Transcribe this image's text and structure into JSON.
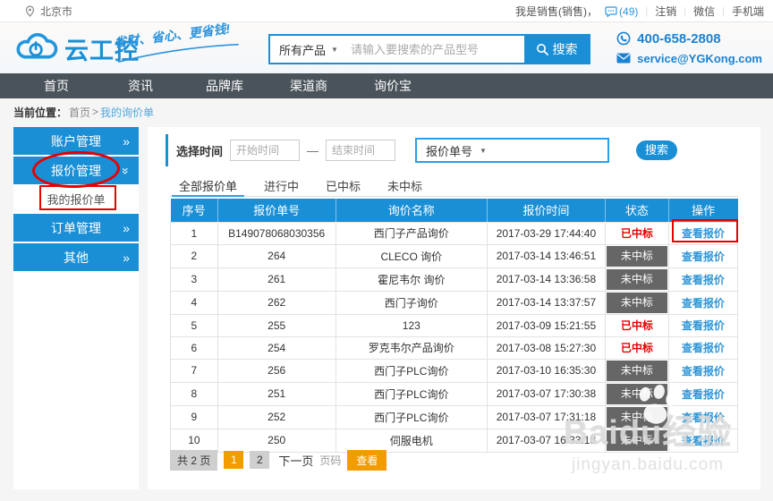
{
  "colors": {
    "primary": "#1b8fd6",
    "nav_bg": "#4a535b",
    "red": "#e60000",
    "chip_bg": "#666666",
    "link": "#2f96d8",
    "orange": "#f39c00",
    "page_bg": "#f5f5f5"
  },
  "topbar": {
    "city": "北京市",
    "user_label": "我是销售(销售)，",
    "message_count": "(49)",
    "links": [
      "注销",
      "微信",
      "手机端"
    ]
  },
  "header": {
    "logo_text": "云工控",
    "slogan": "省财、省心、更省钱!",
    "search_category": "所有产品",
    "search_placeholder": "请输入要搜索的产品型号",
    "search_button": "搜索",
    "phone": "400-658-2808",
    "email": "service@YGKong.com"
  },
  "nav_items": [
    "首页",
    "资讯",
    "品牌库",
    "渠道商",
    "询价宝"
  ],
  "breadcrumb": {
    "prefix": "当前位置：",
    "home": "首页",
    "separator": ">",
    "current": "我的询价单"
  },
  "sidebar_items": [
    {
      "label": "账户管理",
      "type": "main",
      "chevron": "right"
    },
    {
      "label": "报价管理",
      "type": "main",
      "chevron": "down"
    },
    {
      "label": "我的报价单",
      "type": "sub"
    },
    {
      "label": "订单管理",
      "type": "main",
      "chevron": "right"
    },
    {
      "label": "其他",
      "type": "main",
      "chevron": "right"
    }
  ],
  "filters": {
    "time_label": "选择时间",
    "start_placeholder": "开始时间",
    "dash": "—",
    "end_placeholder": "结束时间",
    "type_select": "报价单号",
    "search_button": "搜索"
  },
  "tabs": {
    "items": [
      "全部报价单",
      "进行中",
      "已中标",
      "未中标"
    ],
    "active_index": 0
  },
  "table": {
    "headers": [
      "序号",
      "报价单号",
      "询价名称",
      "报价时间",
      "状态",
      "操作"
    ],
    "rows": [
      {
        "no": "1",
        "quote_no": "B149078068030356",
        "inquiry_name": "西门子产品询价",
        "quote_time": "2017-03-29 17:44:40",
        "status": "已中标",
        "won": true,
        "action": "查看报价"
      },
      {
        "no": "2",
        "quote_no": "264",
        "inquiry_name": "CLECO 询价",
        "quote_time": "2017-03-14 13:46:51",
        "status": "未中标",
        "won": false,
        "action": "查看报价"
      },
      {
        "no": "3",
        "quote_no": "261",
        "inquiry_name": "霍尼韦尔 询价",
        "quote_time": "2017-03-14 13:36:58",
        "status": "未中标",
        "won": false,
        "action": "查看报价"
      },
      {
        "no": "4",
        "quote_no": "262",
        "inquiry_name": "西门子询价",
        "quote_time": "2017-03-14 13:37:57",
        "status": "未中标",
        "won": false,
        "action": "查看报价"
      },
      {
        "no": "5",
        "quote_no": "255",
        "inquiry_name": "123",
        "quote_time": "2017-03-09 15:21:55",
        "status": "已中标",
        "won": true,
        "action": "查看报价"
      },
      {
        "no": "6",
        "quote_no": "254",
        "inquiry_name": "罗克韦尔产品询价",
        "quote_time": "2017-03-08 15:27:30",
        "status": "已中标",
        "won": true,
        "action": "查看报价"
      },
      {
        "no": "7",
        "quote_no": "256",
        "inquiry_name": "西门子PLC询价",
        "quote_time": "2017-03-10 16:35:30",
        "status": "未中标",
        "won": false,
        "action": "查看报价"
      },
      {
        "no": "8",
        "quote_no": "251",
        "inquiry_name": "西门子PLC询价",
        "quote_time": "2017-03-07 17:30:38",
        "status": "未中标",
        "won": false,
        "action": "查看报价"
      },
      {
        "no": "9",
        "quote_no": "252",
        "inquiry_name": "西门子PLC询价",
        "quote_time": "2017-03-07 17:31:18",
        "status": "未中标",
        "won": false,
        "action": "查看报价"
      },
      {
        "no": "10",
        "quote_no": "250",
        "inquiry_name": "伺服电机",
        "quote_time": "2017-03-07 16:33:18",
        "status": "未中标",
        "won": false,
        "action": "查看报价"
      }
    ]
  },
  "pagination": {
    "total_label": "共 2 页",
    "pages": [
      "1",
      "2"
    ],
    "active_index": 0,
    "next_label": "下一页",
    "page_input_label": "页码",
    "view_button": "查看"
  },
  "watermark": {
    "brand_en": "Baidu",
    "brand_cn": "经验",
    "url": "jingyan.baidu.com"
  }
}
